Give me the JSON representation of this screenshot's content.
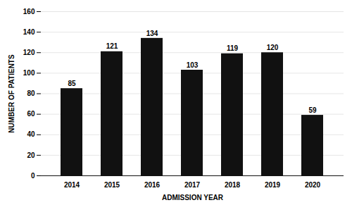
{
  "chart_data": {
    "type": "bar",
    "categories": [
      "2014",
      "2015",
      "2016",
      "2017",
      "2018",
      "2019",
      "2020"
    ],
    "values": [
      85,
      121,
      134,
      103,
      119,
      120,
      59
    ],
    "color": "#111111",
    "xlabel": "ADMISSION YEAR",
    "ylabel": "NUMBER OF PATIENTS",
    "ylim": [
      0,
      160
    ],
    "yticks": [
      0,
      20,
      40,
      60,
      80,
      100,
      120,
      140,
      160
    ],
    "grid": true,
    "data_labels": true
  }
}
